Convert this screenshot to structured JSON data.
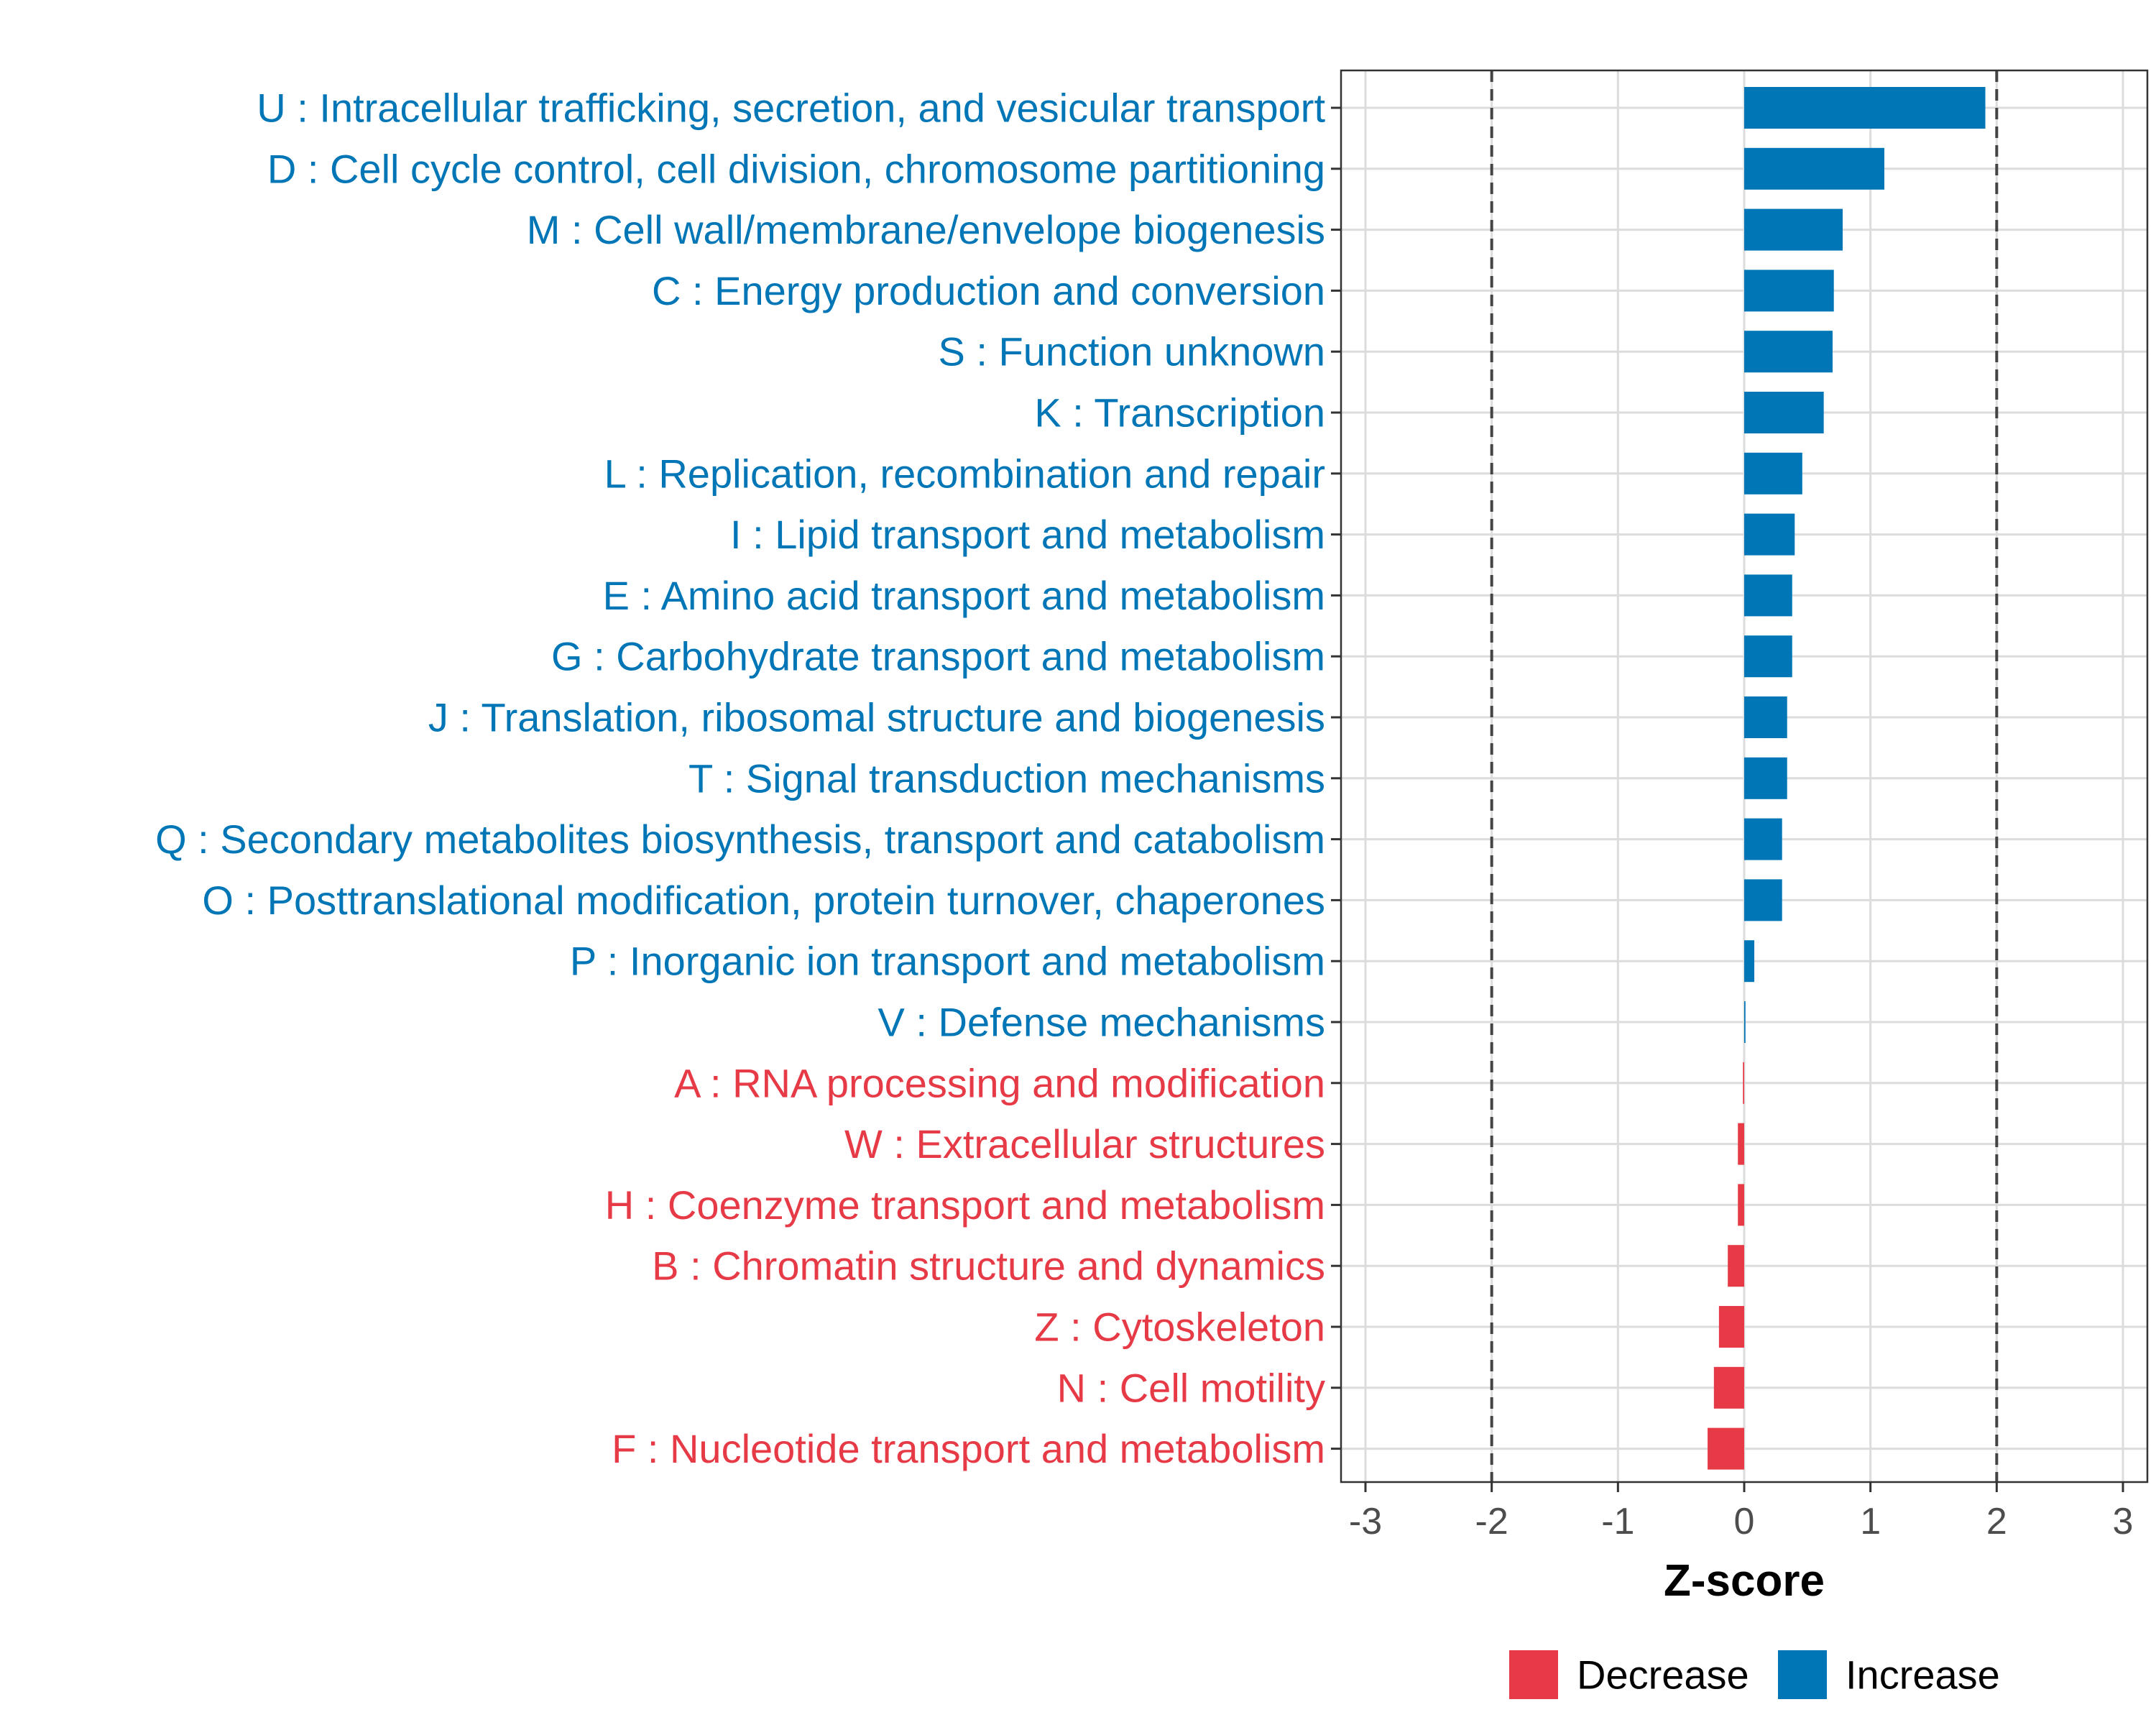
{
  "chart_data": {
    "type": "bar",
    "orientation": "horizontal",
    "title": "",
    "xlabel": "Z-score",
    "ylabel": "",
    "xlim": [
      -3,
      3
    ],
    "xticks": [
      -3,
      -2,
      -1,
      0,
      1,
      2,
      3
    ],
    "xtick_labels": [
      "-3",
      "-2",
      "-1",
      "0",
      "1",
      "2",
      "3"
    ],
    "reference_lines": [
      -2,
      2
    ],
    "grid": true,
    "legend_position": "bottom",
    "categories": [
      "U : Intracellular trafficking, secretion, and vesicular transport",
      "D : Cell cycle control, cell division, chromosome partitioning",
      "M : Cell wall/membrane/envelope biogenesis",
      "C : Energy production and conversion",
      "S : Function unknown",
      "K : Transcription",
      "L : Replication, recombination and repair",
      "I : Lipid transport and metabolism",
      "E : Amino acid transport and metabolism",
      "G : Carbohydrate transport and metabolism",
      "J : Translation, ribosomal structure and biogenesis",
      "T : Signal transduction mechanisms",
      "Q : Secondary metabolites biosynthesis, transport and catabolism",
      "O : Posttranslational modification, protein turnover, chaperones",
      "P : Inorganic ion transport and metabolism",
      "V : Defense mechanisms",
      "A : RNA processing and modification",
      "W : Extracellular structures",
      "H : Coenzyme transport and metabolism",
      "B : Chromatin structure and dynamics",
      "Z : Cytoskeleton",
      "N : Cell motility",
      "F : Nucleotide transport and metabolism"
    ],
    "values": [
      1.91,
      1.11,
      0.78,
      0.71,
      0.7,
      0.63,
      0.46,
      0.4,
      0.38,
      0.38,
      0.34,
      0.34,
      0.3,
      0.3,
      0.08,
      0.01,
      -0.01,
      -0.05,
      -0.05,
      -0.13,
      -0.2,
      -0.24,
      -0.29
    ],
    "groups": [
      "Increase",
      "Increase",
      "Increase",
      "Increase",
      "Increase",
      "Increase",
      "Increase",
      "Increase",
      "Increase",
      "Increase",
      "Increase",
      "Increase",
      "Increase",
      "Increase",
      "Increase",
      "Increase",
      "Decrease",
      "Decrease",
      "Decrease",
      "Decrease",
      "Decrease",
      "Decrease",
      "Decrease"
    ],
    "legend": [
      {
        "name": "Decrease",
        "color": "#E63A46"
      },
      {
        "name": "Increase",
        "color": "#0076B6"
      }
    ]
  }
}
